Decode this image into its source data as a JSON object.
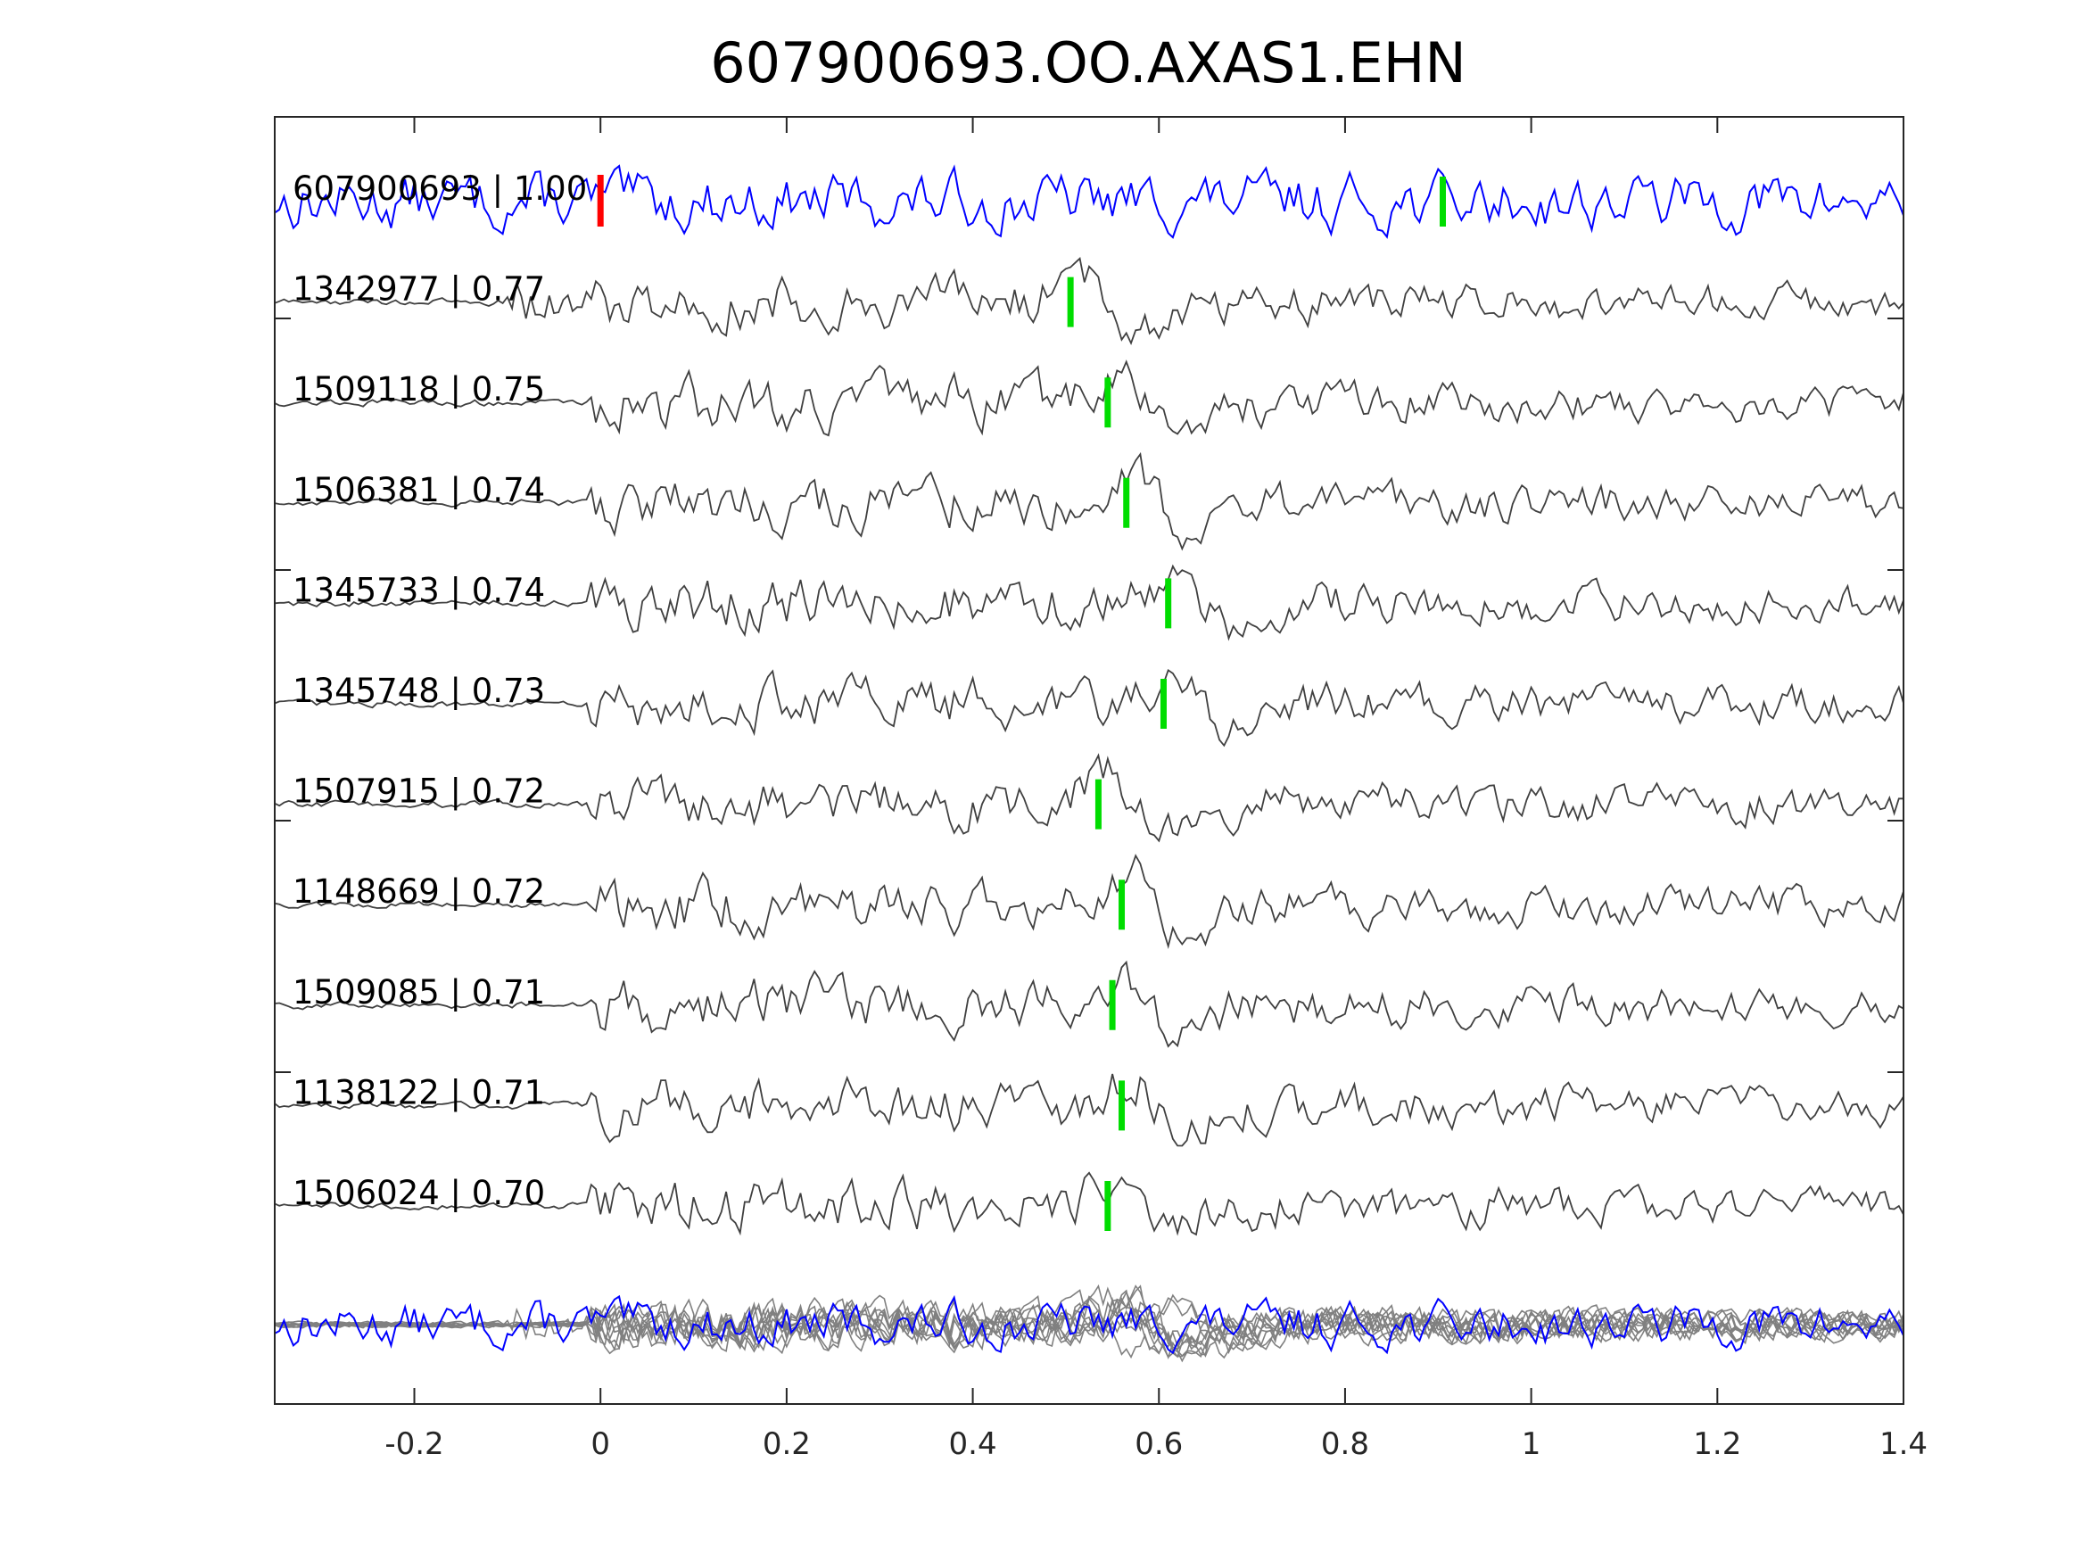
{
  "chart_data": {
    "type": "line",
    "title": "607900693.OO.AXAS1.EHN",
    "xlabel": "",
    "ylabel": "",
    "xlim": [
      -0.35,
      1.4
    ],
    "xticks": [
      -0.2,
      0,
      0.2,
      0.4,
      0.6,
      0.8,
      1,
      1.2,
      1.4
    ],
    "xtick_labels": [
      "-0.2",
      "0",
      "0.2",
      "0.4",
      "0.6",
      "0.8",
      "1",
      "1.2",
      "1.4"
    ],
    "grid": false,
    "colors": {
      "template": "#0000ff",
      "match": "#404040",
      "stack": "#808080",
      "pick": "#00dd00",
      "reference_pick": "#ff0000"
    },
    "reference_pick_time": 0,
    "traces": [
      {
        "label": "607900693 | 1.00",
        "id": "607900693",
        "cc": 1.0,
        "pick": 0.905,
        "template": true
      },
      {
        "label": "1342977 | 0.77",
        "id": "1342977",
        "cc": 0.77,
        "pick": 0.505
      },
      {
        "label": "1509118 | 0.75",
        "id": "1509118",
        "cc": 0.75,
        "pick": 0.545
      },
      {
        "label": "1506381 | 0.74",
        "id": "1506381",
        "cc": 0.74,
        "pick": 0.565
      },
      {
        "label": "1345733 | 0.74",
        "id": "1345733",
        "cc": 0.74,
        "pick": 0.61
      },
      {
        "label": "1345748 | 0.73",
        "id": "1345748",
        "cc": 0.73,
        "pick": 0.605
      },
      {
        "label": "1507915 | 0.72",
        "id": "1507915",
        "cc": 0.72,
        "pick": 0.535
      },
      {
        "label": "1148669 | 0.72",
        "id": "1148669",
        "cc": 0.72,
        "pick": 0.56
      },
      {
        "label": "1509085 | 0.71",
        "id": "1509085",
        "cc": 0.71,
        "pick": 0.55
      },
      {
        "label": "1138122 | 0.71",
        "id": "1138122",
        "cc": 0.71,
        "pick": 0.56
      },
      {
        "label": "1506024 | 0.70",
        "id": "1506024",
        "cc": 0.7,
        "pick": 0.545
      }
    ]
  }
}
